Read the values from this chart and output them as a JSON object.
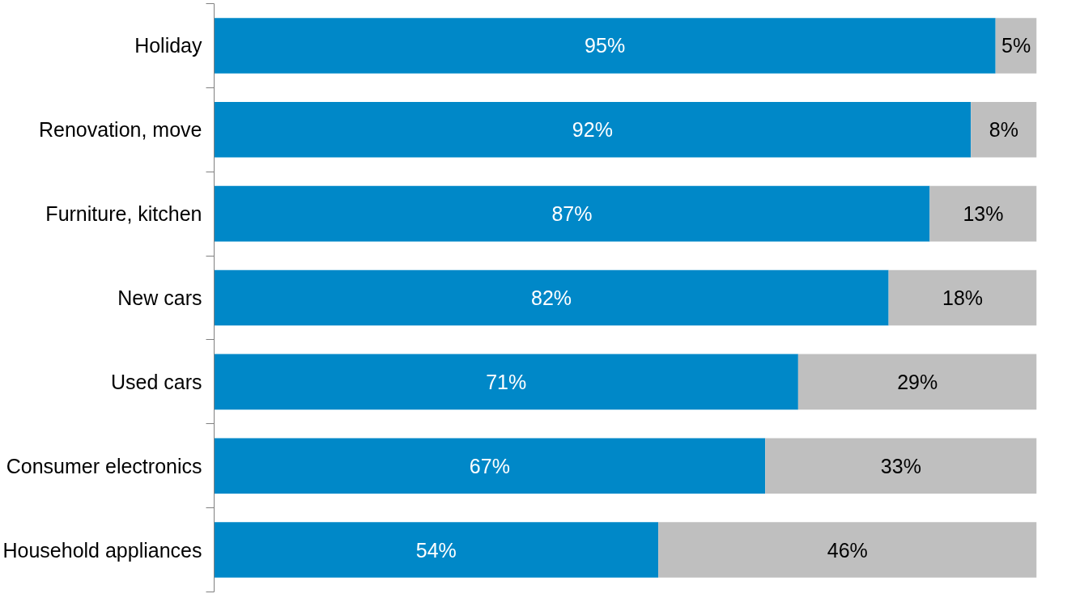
{
  "chart_data": {
    "type": "bar",
    "orientation": "horizontal",
    "stacked": true,
    "categories": [
      "Holiday",
      "Renovation, move",
      "Furniture, kitchen",
      "New cars",
      "Used cars",
      "Consumer electronics",
      "Household appliances"
    ],
    "series": [
      {
        "color": "#0088c8",
        "values": [
          95,
          92,
          87,
          82,
          71,
          67,
          54
        ],
        "value_labels": [
          "95%",
          "92%",
          "87%",
          "82%",
          "71%",
          "67%",
          "54%"
        ]
      },
      {
        "color": "#bfbfbf",
        "values": [
          5,
          8,
          13,
          18,
          29,
          33,
          46
        ],
        "value_labels": [
          "5%",
          "8%",
          "13%",
          "18%",
          "29%",
          "33%",
          "46%"
        ]
      }
    ],
    "xlim": [
      0,
      100
    ],
    "tick_labels": "y",
    "grid": false
  }
}
